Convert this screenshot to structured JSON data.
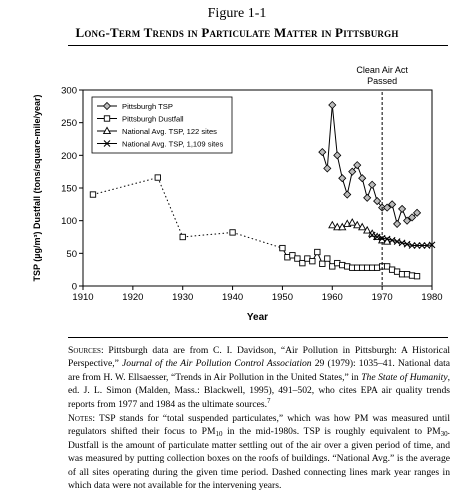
{
  "figure": {
    "label": "Figure 1-1",
    "title": "Long-Term Trends in Particulate Matter in Pittsburgh"
  },
  "chart_data": {
    "type": "line",
    "xlabel": "Year",
    "ylabel": "TSP (µg/m³) Dustfall (tons/square-mile/year)",
    "xlim": [
      1910,
      1980
    ],
    "ylim": [
      0,
      300
    ],
    "xticks": [
      1910,
      1920,
      1930,
      1940,
      1950,
      1960,
      1970,
      1980
    ],
    "yticks": [
      0,
      50,
      100,
      150,
      200,
      250,
      300
    ],
    "grid": false,
    "legend_position": "top-left",
    "annotation": {
      "label_line1": "Clean Air Act",
      "label_line2": "Passed",
      "x": 1970
    },
    "series": [
      {
        "name": "Pittsburgh TSP",
        "marker": "diamond",
        "x": [
          1958,
          1959,
          1960,
          1961,
          1962,
          1963,
          1964,
          1965,
          1966,
          1967,
          1968,
          1969,
          1970,
          1971,
          1972,
          1973,
          1974,
          1975,
          1976,
          1977
        ],
        "y": [
          205,
          180,
          277,
          200,
          165,
          140,
          175,
          185,
          165,
          135,
          155,
          130,
          120,
          120,
          125,
          95,
          118,
          100,
          105,
          112
        ]
      },
      {
        "name": "Pittsburgh Dustfall",
        "marker": "square",
        "x": [
          1912,
          1925,
          1930,
          1940,
          1950,
          1951,
          1952,
          1953,
          1954,
          1955,
          1956,
          1957,
          1958,
          1959,
          1960,
          1961,
          1962,
          1963,
          1964,
          1965,
          1966,
          1967,
          1968,
          1969,
          1970,
          1971,
          1972,
          1973,
          1974,
          1975,
          1976,
          1977
        ],
        "y": [
          140,
          166,
          75,
          82,
          58,
          44,
          47,
          42,
          35,
          42,
          38,
          52,
          34,
          42,
          30,
          35,
          32,
          30,
          28,
          28,
          28,
          28,
          28,
          28,
          30,
          30,
          25,
          22,
          18,
          18,
          16,
          15
        ]
      },
      {
        "name": "National Avg. TSP, 122 sites",
        "marker": "triangle",
        "x": [
          1960,
          1961,
          1962,
          1963,
          1964,
          1965,
          1966,
          1967,
          1968,
          1969,
          1970,
          1971
        ],
        "y": [
          93,
          90,
          90,
          95,
          97,
          93,
          90,
          85,
          80,
          75,
          70,
          68
        ]
      },
      {
        "name": "National Avg. TSP, 1,109 sites",
        "marker": "x",
        "x": [
          1968,
          1969,
          1970,
          1971,
          1972,
          1973,
          1974,
          1975,
          1976,
          1977,
          1978,
          1979,
          1980
        ],
        "y": [
          78,
          75,
          73,
          72,
          70,
          68,
          66,
          64,
          62,
          62,
          62,
          62,
          63
        ]
      }
    ]
  },
  "notes": {
    "sources_heading": "Sources:",
    "sources_1": "Pittsburgh data are from C. I. Davidson, “Air Pollution in Pittsburgh: A Historical Perspective,”",
    "sources_journal": "Journal of the Air Pollution Control Association",
    "sources_2": "29 (1979): 1035–41. National data are from H. W. Ellsaesser, “Trends in Air Pollution in the United States,” in",
    "sources_book": "The State of Humanity",
    "sources_3": ", ed. J. L. Simon (Malden, Mass.: Blackwell, 1995), 491–502, who cites EPA air quality trends reports from 1977 and 1984 as the ultimate sources.",
    "sources_footnote": "7",
    "notes_heading": "Notes:",
    "n1": "TSP stands for “total suspended particulates,” which was how PM was measured until regulators shifted their focus to PM",
    "sub10": "10",
    "n2": " in the mid-1980s. TSP is roughly equivalent to PM",
    "sub30": "30",
    "n3": ". Dustfall is the amount of particulate matter settling out of the air over a given period of time, and was measured by putting collection boxes on the roofs of buildings. “National Avg.” is the average of all sites operating during the given time period. Dashed connecting lines mark year ranges in which data were not available for the intervening years."
  }
}
